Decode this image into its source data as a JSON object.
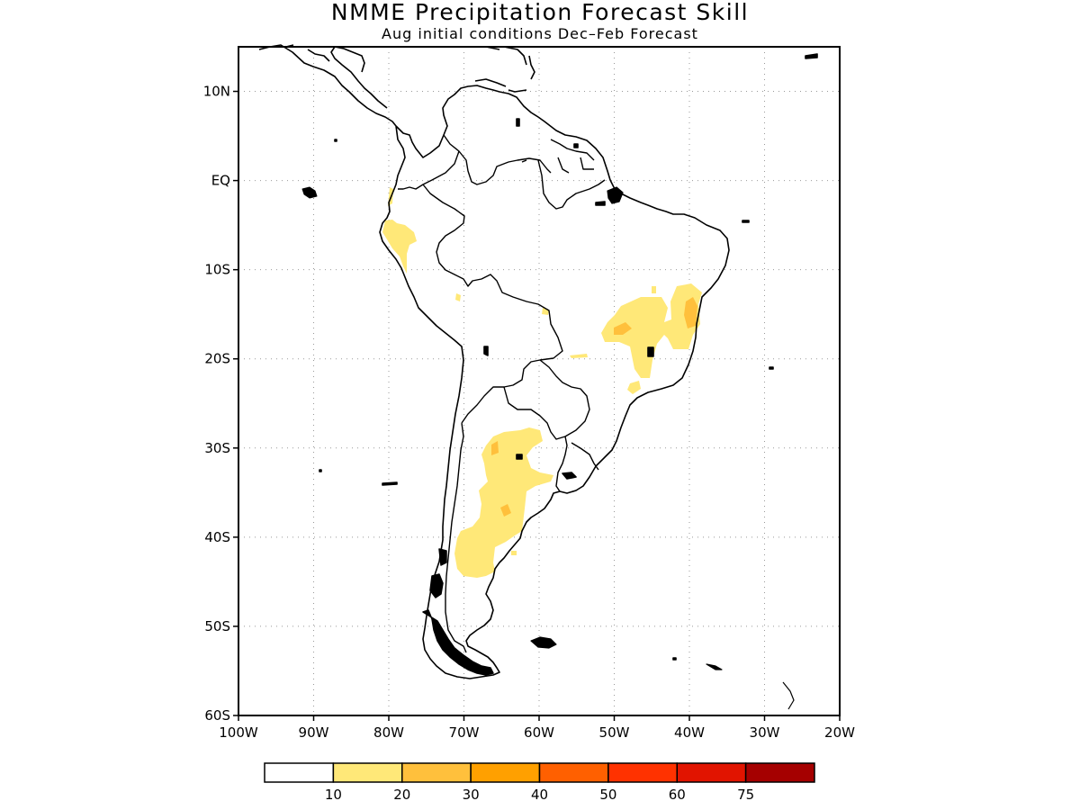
{
  "title": "NMME Precipitation Forecast Skill",
  "subtitle": "Aug initial conditions  Dec–Feb Forecast",
  "map": {
    "region": "South America",
    "lon_range": [
      -100,
      -20
    ],
    "lat_range": [
      -60,
      15
    ],
    "lat_ticks": [
      {
        "value": 10,
        "label": "10N"
      },
      {
        "value": 0,
        "label": "EQ"
      },
      {
        "value": -10,
        "label": "10S"
      },
      {
        "value": -20,
        "label": "20S"
      },
      {
        "value": -30,
        "label": "30S"
      },
      {
        "value": -40,
        "label": "40S"
      },
      {
        "value": -50,
        "label": "50S"
      },
      {
        "value": -60,
        "label": "60S"
      }
    ],
    "lon_ticks": [
      {
        "value": -100,
        "label": "100W"
      },
      {
        "value": -90,
        "label": "90W"
      },
      {
        "value": -80,
        "label": "80W"
      },
      {
        "value": -70,
        "label": "70W"
      },
      {
        "value": -60,
        "label": "60W"
      },
      {
        "value": -50,
        "label": "50W"
      },
      {
        "value": -40,
        "label": "40W"
      },
      {
        "value": -30,
        "label": "30W"
      },
      {
        "value": -20,
        "label": "20W"
      }
    ],
    "grid": "dotted"
  },
  "colorbar": {
    "colors": [
      "#ffffff",
      "#ffe878",
      "#ffc03c",
      "#ffa000",
      "#ff6000",
      "#ff3200",
      "#e11400",
      "#a50000"
    ],
    "labels": [
      "10",
      "20",
      "30",
      "40",
      "50",
      "60",
      "75"
    ]
  }
}
